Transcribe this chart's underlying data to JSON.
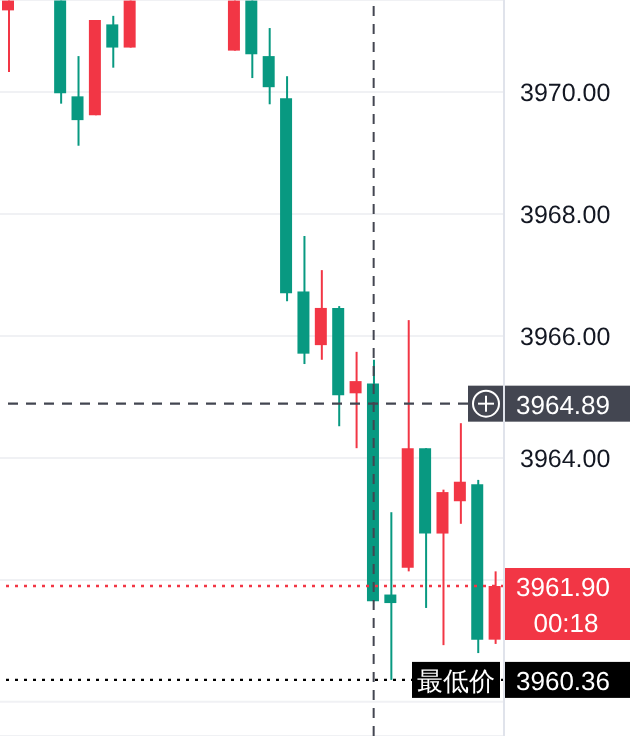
{
  "chart_data": {
    "type": "candlestick",
    "categories": [
      null,
      null,
      null,
      null,
      null,
      null,
      null,
      null,
      null,
      null,
      null,
      null,
      null,
      null,
      null,
      null,
      null,
      null,
      null,
      null,
      null,
      null,
      null,
      null,
      null,
      null,
      null,
      null,
      null
    ],
    "ohlc": [
      [
        3971.34,
        3971.5,
        3970.33,
        3971.5
      ],
      null,
      null,
      [
        3971.5,
        3971.5,
        3969.81,
        3969.98
      ],
      [
        3969.93,
        3970.59,
        3969.12,
        3969.54
      ],
      [
        3969.62,
        3971.18,
        3969.62,
        3971.18
      ],
      [
        3971.11,
        3971.25,
        3970.4,
        3970.73
      ],
      [
        3970.73,
        3971.5,
        3970.73,
        3971.5
      ],
      null,
      null,
      null,
      null,
      null,
      [
        3970.68,
        3971.5,
        3970.68,
        3971.5
      ],
      [
        3971.5,
        3971.5,
        3970.23,
        3970.62
      ],
      [
        3970.59,
        3971.05,
        3969.8,
        3970.08
      ],
      [
        3969.9,
        3970.26,
        3966.57,
        3966.7
      ],
      [
        3966.73,
        3967.64,
        3965.54,
        3965.71
      ],
      [
        3965.85,
        3967.08,
        3965.61,
        3966.46
      ],
      [
        3966.46,
        3966.49,
        3964.52,
        3965.03
      ],
      [
        3965.06,
        3965.74,
        3964.16,
        3965.26
      ],
      [
        3965.22,
        3965.61,
        3961.65,
        3961.65
      ],
      [
        3961.76,
        3963.11,
        3960.36,
        3961.62
      ],
      [
        3962.2,
        3966.26,
        3962.14,
        3964.16
      ],
      [
        3964.16,
        3964.16,
        3961.54,
        3962.76
      ],
      [
        3962.76,
        3963.48,
        3960.93,
        3963.44
      ],
      [
        3963.29,
        3964.57,
        3962.92,
        3963.61
      ],
      [
        3963.57,
        3963.64,
        3960.8,
        3961.02
      ],
      [
        3961.02,
        3962.14,
        3960.95,
        3961.9
      ]
    ],
    "colors": [
      "#f23645",
      null,
      null,
      "#089981",
      "#089981",
      "#f23645",
      "#089981",
      "#f23645",
      null,
      null,
      null,
      null,
      null,
      "#f23645",
      "#089981",
      "#089981",
      "#089981",
      "#089981",
      "#f23645",
      "#089981",
      "#f23645",
      "#089981",
      "#089981",
      "#f23645",
      "#089981",
      "#f23645",
      "#f23645",
      "#089981",
      "#f23645"
    ],
    "ylim": [
      3959.44,
      3971.51
    ],
    "yticks": [
      {
        "value": 3960,
        "label": null
      },
      {
        "value": 3962,
        "label": null
      },
      {
        "value": 3964,
        "label": "3964.00"
      },
      {
        "value": 3966,
        "label": "3966.00"
      },
      {
        "value": 3968,
        "label": "3968.00"
      },
      {
        "value": 3970,
        "label": "3970.00"
      }
    ],
    "grid": "y",
    "tick_labels": "y",
    "ref_lines": [
      {
        "axis": "y",
        "value": 3964.89,
        "label": "3964.89",
        "color": "#434651",
        "line_style": "dashed"
      },
      {
        "axis": "y",
        "value": 3961.9,
        "label": "3961.90",
        "color": "#f23645",
        "line_style": "dotted"
      },
      {
        "axis": "y",
        "value": 3960.36,
        "label": "3960.36",
        "color": "#000000",
        "line_style": "dotted"
      }
    ],
    "annotations": [
      "00:18",
      {
        "text": "最低价",
        "y": 3960.36
      }
    ]
  }
}
